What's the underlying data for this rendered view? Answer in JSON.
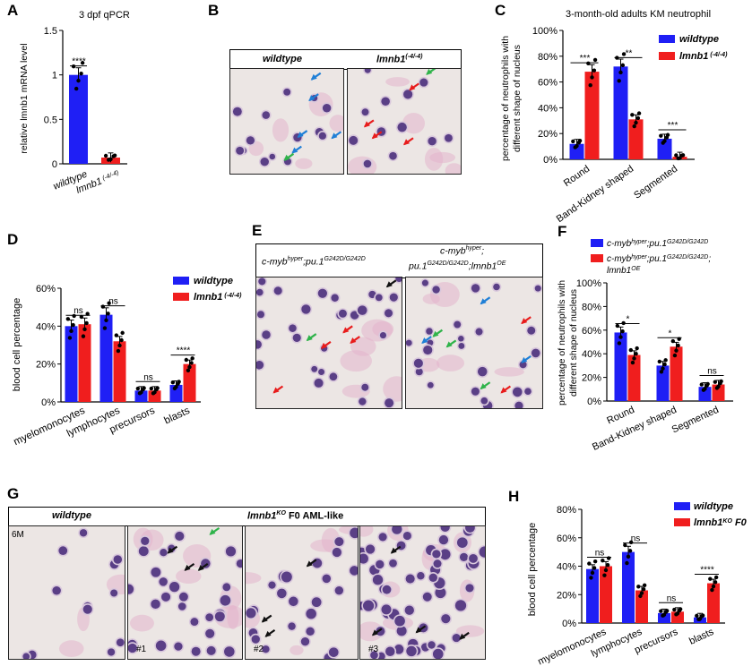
{
  "panels": {
    "a": {
      "letter": "A"
    },
    "b": {
      "letter": "B"
    },
    "c": {
      "letter": "C"
    },
    "d": {
      "letter": "D"
    },
    "e": {
      "letter": "E"
    },
    "f": {
      "letter": "F"
    },
    "g": {
      "letter": "G"
    },
    "h": {
      "letter": "H"
    }
  },
  "panel_b": {
    "label_wt": "wildtype",
    "label_mut": "lmnb1",
    "label_mut_sup": "(-4/-4)"
  },
  "panel_e": {
    "label_left": "c-myb",
    "label_left_sup": "hyper",
    "label_left_mid": ";pu.1",
    "label_left_sup2": "G242D/G242D",
    "label_right_l1": "c-myb",
    "label_right_l1_sup": "hyper",
    "label_right_l1_end": ";",
    "label_right_l2": "pu.1",
    "label_right_l2_sup": "G242D/G242D",
    "label_right_l2_mid": ";lmnb1",
    "label_right_l2_sup2": "OE"
  },
  "panel_g": {
    "label_wt": "wildtype",
    "label_ko": "lmnb1",
    "label_ko_sup": "KO",
    "label_ko_end": " F0 AML-like",
    "tags": [
      "6M",
      "#1",
      "#2",
      "#3"
    ]
  },
  "colors": {
    "blue": "#1f1ff5",
    "red": "#f01e1e",
    "arrow_blue": "#1f7fd6",
    "arrow_red": "#e81c1c",
    "arrow_green": "#2fb34a",
    "arrow_black": "#111111",
    "stain_bg": "#ece6e4",
    "cell": "#5a3f86"
  },
  "chart_data": [
    {
      "id": "A",
      "type": "bar",
      "title": "3 dpf qPCR",
      "ylabel": "relative lmnb1 mRNA level",
      "ylim": [
        0,
        1.5
      ],
      "yticks": [
        "0",
        "0.5",
        "1",
        "1.5"
      ],
      "categories": [
        "wildtype",
        "lmnb1"
      ],
      "category_sups": [
        "",
        "(-4/-4)"
      ],
      "values": [
        1.0,
        0.07
      ],
      "colors": [
        "#1f1ff5",
        "#f01e1e"
      ],
      "significance": [
        "****"
      ]
    },
    {
      "id": "C",
      "type": "bar",
      "title": "3-month-old adults KM neutrophil",
      "ylabel_lines": [
        "percentage of neutrophils with",
        "different shape of nucleus"
      ],
      "ylim": [
        0,
        100
      ],
      "yticks": [
        "0%",
        "20%",
        "40%",
        "60%",
        "80%",
        "100%"
      ],
      "categories": [
        "Round",
        "Band-Kidney shaped",
        "Segmented"
      ],
      "series": [
        {
          "name": "wildtype",
          "values": [
            12,
            72,
            16
          ]
        },
        {
          "name": "lmnb1",
          "name_sup": "(-4/-4)",
          "values": [
            68,
            31,
            2
          ]
        }
      ],
      "significance": [
        "***",
        "**",
        "***"
      ]
    },
    {
      "id": "D",
      "type": "bar",
      "ylabel": "blood cell percentage",
      "ylim": [
        0,
        60
      ],
      "yticks": [
        "0%",
        "20%",
        "40%",
        "60%"
      ],
      "categories": [
        "myelomonocytes",
        "lymphocytes",
        "precursors",
        "blasts"
      ],
      "series": [
        {
          "name": "wildtype",
          "values": [
            40,
            46,
            6,
            9
          ]
        },
        {
          "name": "lmnb1",
          "name_sup": "(-4/-4)",
          "values": [
            41,
            32,
            6,
            20
          ]
        }
      ],
      "significance": [
        "ns",
        "ns",
        "ns",
        "****"
      ]
    },
    {
      "id": "F",
      "type": "bar",
      "ylabel_lines": [
        "percentage of neutrophils with",
        "different shape of nucleus"
      ],
      "ylim": [
        0,
        100
      ],
      "yticks": [
        "0%",
        "20%",
        "40%",
        "60%",
        "80%",
        "100%"
      ],
      "categories": [
        "Round",
        "Band-Kidney shaped",
        "Segmented"
      ],
      "series": [
        {
          "name": "c-myb;pu.1",
          "values": [
            58,
            30,
            12
          ]
        },
        {
          "name": "c-myb;pu.1;lmnb1",
          "values": [
            39,
            46,
            14
          ]
        }
      ],
      "significance": [
        "*",
        "*",
        "ns"
      ]
    },
    {
      "id": "H",
      "type": "bar",
      "ylabel": "blood cell percentage",
      "ylim": [
        0,
        80
      ],
      "yticks": [
        "0%",
        "20%",
        "40%",
        "60%",
        "80%"
      ],
      "categories": [
        "myelomonocytes",
        "lymphocytes",
        "precursors",
        "blasts"
      ],
      "series": [
        {
          "name": "wildtype",
          "values": [
            38,
            50,
            7,
            4
          ]
        },
        {
          "name": "lmnb1",
          "name_sup": "KO",
          "name_end": " F0",
          "values": [
            40,
            23,
            8,
            28
          ]
        }
      ],
      "significance": [
        "ns",
        "ns",
        "ns",
        "****"
      ]
    }
  ]
}
